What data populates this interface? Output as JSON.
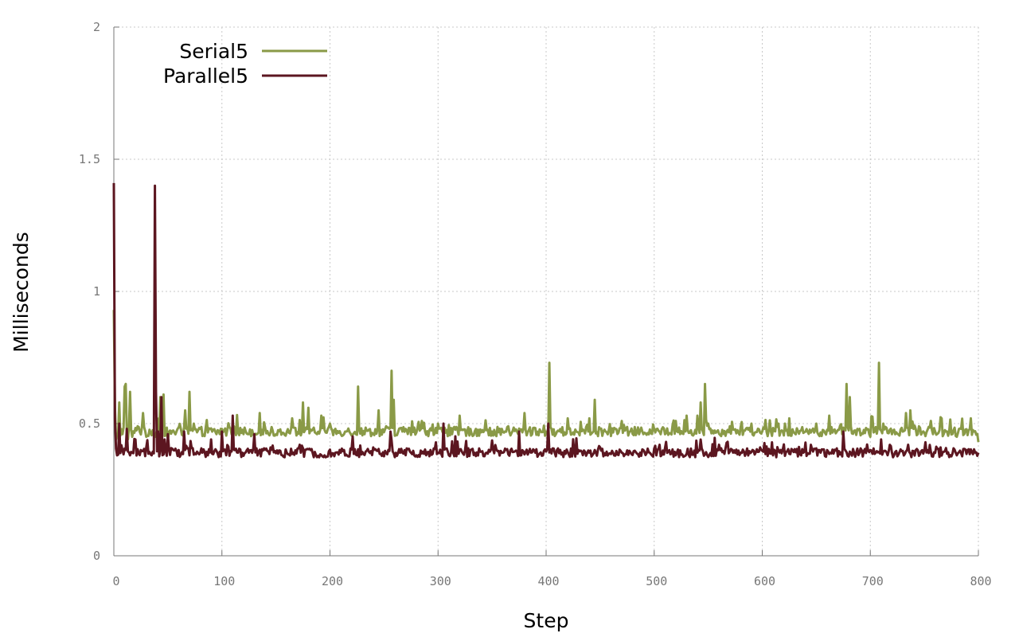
{
  "chart_data": {
    "type": "line",
    "title": "",
    "xlabel": "Step",
    "ylabel": "Milliseconds",
    "xlim": [
      0,
      800
    ],
    "ylim": [
      0,
      2
    ],
    "xticks": [
      0,
      100,
      200,
      300,
      400,
      500,
      600,
      700,
      800
    ],
    "xtick_labels": [
      "0",
      "100",
      "200",
      "300",
      "400",
      "500",
      "600",
      "700",
      "800"
    ],
    "yticks": [
      0,
      0.5,
      1,
      1.5,
      2
    ],
    "ytick_labels": [
      "0",
      "0.5",
      "1",
      "1.5",
      "2"
    ],
    "grid": true,
    "legend_position": "top-left",
    "series": [
      {
        "name": "Serial5",
        "color": "#8a9a47",
        "base": 0.47,
        "x_range": [
          0,
          800
        ],
        "points": [
          [
            0,
            0.93
          ],
          [
            1,
            0.56
          ],
          [
            2,
            0.44
          ],
          [
            5,
            0.58
          ],
          [
            8,
            0.46
          ],
          [
            10,
            0.64
          ],
          [
            11,
            0.65
          ],
          [
            13,
            0.44
          ],
          [
            15,
            0.62
          ],
          [
            17,
            0.45
          ],
          [
            22,
            0.49
          ],
          [
            27,
            0.54
          ],
          [
            30,
            0.45
          ],
          [
            38,
            0.45
          ],
          [
            43,
            0.6
          ],
          [
            46,
            0.61
          ],
          [
            50,
            0.44
          ],
          [
            62,
            0.48
          ],
          [
            66,
            0.55
          ],
          [
            70,
            0.62
          ],
          [
            74,
            0.5
          ],
          [
            80,
            0.48
          ],
          [
            95,
            0.46
          ],
          [
            100,
            0.48
          ],
          [
            120,
            0.46
          ],
          [
            135,
            0.54
          ],
          [
            150,
            0.46
          ],
          [
            165,
            0.52
          ],
          [
            175,
            0.58
          ],
          [
            180,
            0.56
          ],
          [
            192,
            0.53
          ],
          [
            200,
            0.5
          ],
          [
            215,
            0.47
          ],
          [
            226,
            0.64
          ],
          [
            232,
            0.46
          ],
          [
            245,
            0.55
          ],
          [
            252,
            0.49
          ],
          [
            257,
            0.7
          ],
          [
            259,
            0.59
          ],
          [
            270,
            0.48
          ],
          [
            285,
            0.51
          ],
          [
            300,
            0.5
          ],
          [
            320,
            0.53
          ],
          [
            335,
            0.48
          ],
          [
            350,
            0.47
          ],
          [
            365,
            0.49
          ],
          [
            380,
            0.54
          ],
          [
            395,
            0.47
          ],
          [
            403,
            0.73
          ],
          [
            405,
            0.48
          ],
          [
            420,
            0.52
          ],
          [
            440,
            0.52
          ],
          [
            445,
            0.59
          ],
          [
            455,
            0.47
          ],
          [
            470,
            0.51
          ],
          [
            490,
            0.46
          ],
          [
            505,
            0.47
          ],
          [
            520,
            0.51
          ],
          [
            530,
            0.53
          ],
          [
            540,
            0.53
          ],
          [
            543,
            0.58
          ],
          [
            547,
            0.65
          ],
          [
            550,
            0.5
          ],
          [
            570,
            0.49
          ],
          [
            590,
            0.5
          ],
          [
            600,
            0.47
          ],
          [
            615,
            0.5
          ],
          [
            625,
            0.52
          ],
          [
            640,
            0.47
          ],
          [
            650,
            0.5
          ],
          [
            662,
            0.53
          ],
          [
            678,
            0.65
          ],
          [
            681,
            0.6
          ],
          [
            690,
            0.48
          ],
          [
            700,
            0.45
          ],
          [
            708,
            0.73
          ],
          [
            712,
            0.5
          ],
          [
            720,
            0.46
          ],
          [
            733,
            0.54
          ],
          [
            737,
            0.55
          ],
          [
            745,
            0.49
          ],
          [
            760,
            0.47
          ],
          [
            780,
            0.45
          ],
          [
            793,
            0.52
          ],
          [
            800,
            0.43
          ]
        ]
      },
      {
        "name": "Parallel5",
        "color": "#5c1620",
        "base": 0.39,
        "x_range": [
          0,
          800
        ],
        "points": [
          [
            0,
            1.41
          ],
          [
            1,
            0.52
          ],
          [
            3,
            0.38
          ],
          [
            5,
            0.5
          ],
          [
            8,
            0.4
          ],
          [
            12,
            0.48
          ],
          [
            15,
            0.38
          ],
          [
            20,
            0.44
          ],
          [
            25,
            0.4
          ],
          [
            30,
            0.41
          ],
          [
            35,
            0.38
          ],
          [
            38,
            1.4
          ],
          [
            39,
            0.62
          ],
          [
            41,
            0.47
          ],
          [
            44,
            0.6
          ],
          [
            47,
            0.44
          ],
          [
            50,
            0.46
          ],
          [
            55,
            0.4
          ],
          [
            60,
            0.4
          ],
          [
            65,
            0.47
          ],
          [
            70,
            0.38
          ],
          [
            80,
            0.39
          ],
          [
            90,
            0.44
          ],
          [
            100,
            0.47
          ],
          [
            110,
            0.53
          ],
          [
            115,
            0.39
          ],
          [
            130,
            0.46
          ],
          [
            145,
            0.41
          ],
          [
            160,
            0.39
          ],
          [
            172,
            0.42
          ],
          [
            182,
            0.4
          ],
          [
            195,
            0.38
          ],
          [
            210,
            0.39
          ],
          [
            225,
            0.38
          ],
          [
            240,
            0.41
          ],
          [
            256,
            0.47
          ],
          [
            265,
            0.39
          ],
          [
            280,
            0.38
          ],
          [
            300,
            0.39
          ],
          [
            305,
            0.5
          ],
          [
            310,
            0.38
          ],
          [
            330,
            0.4
          ],
          [
            345,
            0.39
          ],
          [
            360,
            0.39
          ],
          [
            375,
            0.47
          ],
          [
            390,
            0.39
          ],
          [
            402,
            0.5
          ],
          [
            410,
            0.4
          ],
          [
            430,
            0.4
          ],
          [
            450,
            0.41
          ],
          [
            470,
            0.39
          ],
          [
            490,
            0.4
          ],
          [
            505,
            0.42
          ],
          [
            520,
            0.38
          ],
          [
            540,
            0.39
          ],
          [
            560,
            0.42
          ],
          [
            580,
            0.39
          ],
          [
            598,
            0.41
          ],
          [
            610,
            0.38
          ],
          [
            628,
            0.4
          ],
          [
            645,
            0.42
          ],
          [
            660,
            0.4
          ],
          [
            675,
            0.47
          ],
          [
            690,
            0.39
          ],
          [
            700,
            0.4
          ],
          [
            710,
            0.44
          ],
          [
            720,
            0.39
          ],
          [
            735,
            0.42
          ],
          [
            750,
            0.4
          ],
          [
            765,
            0.41
          ],
          [
            780,
            0.38
          ],
          [
            790,
            0.4
          ],
          [
            800,
            0.39
          ]
        ]
      }
    ]
  }
}
